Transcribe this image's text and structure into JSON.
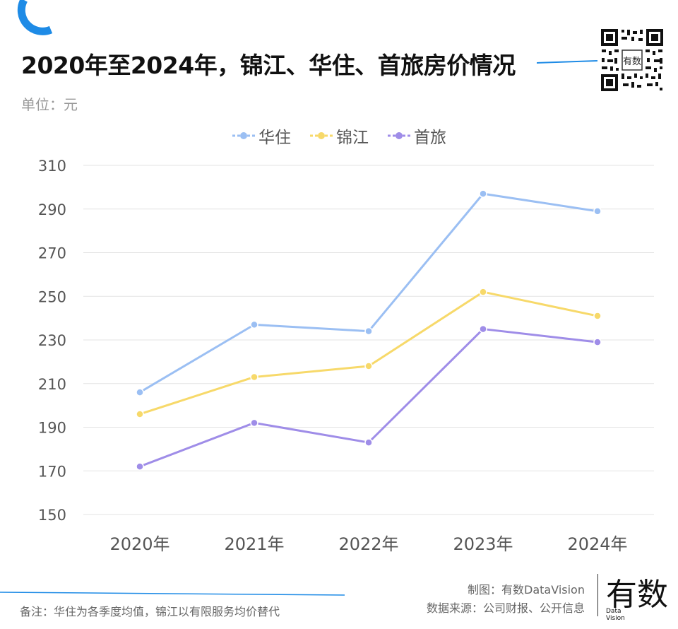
{
  "header": {
    "title": "2020年至2024年，锦江、华住、首旅房价情况",
    "unit": "单位：元",
    "qr_icon_label": "有数"
  },
  "footer": {
    "note": "备注：华住为各季度均值，锦江以有限服务均价替代",
    "credit_line1": "制图：有数DataVision",
    "credit_line2": "数据来源：公司财报、公开信息",
    "logo_text": "有数",
    "logo_subtext_1": "Data",
    "logo_subtext_2": "Vision"
  },
  "colors": {
    "accent_blue": "#1e8be6",
    "huazhu": "#9bbff3",
    "jinjiang": "#f7d96a",
    "shoulv": "#9f8de8",
    "grid": "#e3e3e3",
    "axis_text": "#555555"
  },
  "chart_data": {
    "type": "line",
    "categories": [
      "2020年",
      "2021年",
      "2022年",
      "2023年",
      "2024年"
    ],
    "series": [
      {
        "name": "华住",
        "color": "#9bbff3",
        "values": [
          206,
          237,
          234,
          297,
          289
        ]
      },
      {
        "name": "锦江",
        "color": "#f7d96a",
        "values": [
          196,
          213,
          218,
          252,
          241
        ]
      },
      {
        "name": "首旅",
        "color": "#9f8de8",
        "values": [
          172,
          192,
          183,
          235,
          229
        ]
      }
    ],
    "yticks": [
      150,
      170,
      190,
      210,
      230,
      250,
      270,
      290,
      310
    ],
    "ylim": [
      150,
      310
    ],
    "grid": true,
    "legend_position": "top-center"
  }
}
